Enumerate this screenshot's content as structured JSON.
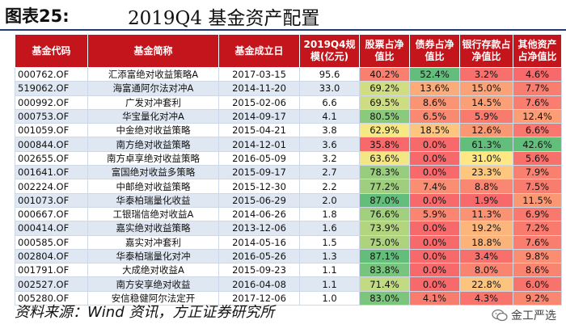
{
  "figure": {
    "label": "图表25:",
    "title": "2019Q4 基金资产配置"
  },
  "table": {
    "headers": [
      "基金代码",
      "基金简称",
      "基金成立日",
      "2019Q4规模(亿元)",
      "股票占净值比",
      "债券占净值比",
      "银行存款占净值比",
      "其他资产占净值比"
    ],
    "rows": [
      [
        "000762.OF",
        "汇添富绝对收益策略A",
        "2017-03-15",
        "95.6",
        "40.2%",
        "52.4%",
        "3.2%",
        "4.6%"
      ],
      [
        "519062.OF",
        "海富通阿尔法对冲A",
        "2014-11-20",
        "33.0",
        "69.2%",
        "13.6%",
        "15.0%",
        "7.7%"
      ],
      [
        "000992.OF",
        "广发对冲套利",
        "2015-02-06",
        "6.6",
        "69.5%",
        "8.6%",
        "14.5%",
        "7.6%"
      ],
      [
        "000753.OF",
        "华宝量化对冲A",
        "2014-09-17",
        "4.1",
        "80.5%",
        "6.5%",
        "5.9%",
        "12.4%"
      ],
      [
        "001059.OF",
        "中金绝对收益策略",
        "2015-04-21",
        "3.8",
        "62.9%",
        "18.5%",
        "12.6%",
        "6.6%"
      ],
      [
        "000844.OF",
        "南方绝对收益策略",
        "2014-12-01",
        "3.6",
        "35.8%",
        "0.0%",
        "61.3%",
        "42.6%"
      ],
      [
        "002655.OF",
        "南方卓享绝对收益策略",
        "2016-05-09",
        "3.2",
        "63.6%",
        "0.0%",
        "31.0%",
        "5.6%"
      ],
      [
        "001641.OF",
        "富国绝对收益多策略",
        "2015-09-17",
        "2.7",
        "78.3%",
        "0.0%",
        "23.3%",
        "7.9%"
      ],
      [
        "002224.OF",
        "中邮绝对收益策略",
        "2015-12-30",
        "2.2",
        "77.2%",
        "7.4%",
        "8.8%",
        "7.5%"
      ],
      [
        "001073.OF",
        "华泰柏瑞量化收益",
        "2015-06-29",
        "2.0",
        "87.0%",
        "0.0%",
        "1.9%",
        "11.5%"
      ],
      [
        "000667.OF",
        "工银瑞信绝对收益A",
        "2014-06-26",
        "1.8",
        "76.6%",
        "5.9%",
        "11.3%",
        "6.9%"
      ],
      [
        "000414.OF",
        "嘉实绝对收益策略",
        "2013-12-06",
        "1.6",
        "73.9%",
        "0.0%",
        "19.2%",
        "7.2%"
      ],
      [
        "000585.OF",
        "嘉实对冲套利",
        "2014-05-16",
        "1.5",
        "75.0%",
        "0.0%",
        "18.8%",
        "7.6%"
      ],
      [
        "002804.OF",
        "华泰柏瑞量化对冲",
        "2016-05-26",
        "1.3",
        "87.1%",
        "0.0%",
        "3.4%",
        "9.8%"
      ],
      [
        "001791.OF",
        "大成绝对收益A",
        "2015-09-23",
        "1.1",
        "83.8%",
        "0.0%",
        "8.0%",
        "8.6%"
      ],
      [
        "002527.OF",
        "南方安享绝对收益",
        "2016-04-08",
        "1.1",
        "71.4%",
        "0.0%",
        "22.8%",
        "6.0%"
      ],
      [
        "005280.OF",
        "安信稳健阿尔法定开",
        "2017-12-06",
        "1.0",
        "83.0%",
        "4.1%",
        "4.3%",
        "9.2%"
      ]
    ]
  },
  "heat_colors": {
    "low": "#f8696b",
    "mid": "#ffeb84",
    "high": "#63be7b"
  },
  "source": "资料来源：Wind 资讯，方正证券研究所",
  "watermark": {
    "text": "金工严选",
    "icon": "wechat-icon"
  },
  "colors": {
    "header_bg": "#c4151c",
    "stripe": "#dfe7f2",
    "rule": "#1f3c6e"
  }
}
